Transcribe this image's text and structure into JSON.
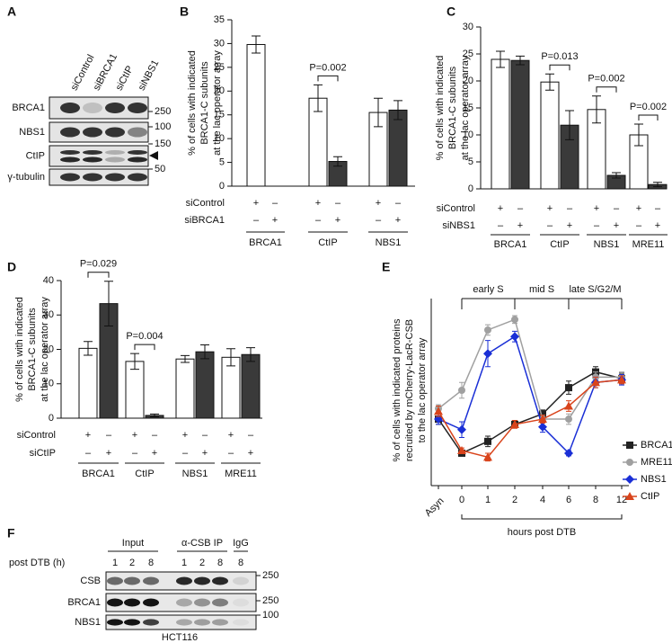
{
  "chart_data": [
    {
      "type": "bar",
      "panel_label": "B",
      "ylabel": [
        "% of cells with indicated",
        "BRCA1-C subunits",
        "at the lac operator array"
      ],
      "categories": [
        "BRCA1",
        "CtIP",
        "NBS1"
      ],
      "series": [
        {
          "color": "#ffffff",
          "values": [
            29.8,
            18.5,
            15.5
          ],
          "errors": [
            1.8,
            2.8,
            3
          ]
        },
        {
          "color": "#3a3a3a",
          "values": [
            null,
            5.2,
            16
          ],
          "errors": [
            null,
            1,
            2
          ]
        }
      ],
      "conditions": [
        {
          "label": "siControl",
          "signs": [
            "+",
            "–",
            "+",
            "–",
            "+",
            "–"
          ]
        },
        {
          "label": "siBRCA1",
          "signs": [
            "–",
            "+",
            "–",
            "+",
            "–",
            "+"
          ]
        }
      ],
      "annotations": [
        {
          "text": "P=0.002",
          "category": "CtIP"
        }
      ],
      "ylim": [
        0,
        35
      ],
      "yticks": [
        0,
        5,
        10,
        15,
        20,
        25,
        30,
        35
      ]
    },
    {
      "type": "bar",
      "panel_label": "C",
      "ylabel": [
        "% of cells with indicated",
        "BRCA1-C subunits",
        "at the lac operator array"
      ],
      "categories": [
        "BRCA1",
        "CtIP",
        "NBS1",
        "MRE11"
      ],
      "series": [
        {
          "color": "#ffffff",
          "values": [
            24,
            19.8,
            14.7,
            10
          ],
          "errors": [
            1.5,
            1.5,
            2.5,
            2
          ]
        },
        {
          "color": "#3a3a3a",
          "values": [
            23.8,
            11.8,
            2.5,
            0.8
          ],
          "errors": [
            0.8,
            2.7,
            0.5,
            0.4
          ]
        }
      ],
      "conditions": [
        {
          "label": "siControl",
          "signs": [
            "+",
            "–",
            "+",
            "–",
            "+",
            "–",
            "+",
            "–"
          ]
        },
        {
          "label": "siNBS1",
          "signs": [
            "–",
            "+",
            "–",
            "+",
            "–",
            "+",
            "–",
            "+"
          ]
        }
      ],
      "annotations": [
        {
          "text": "P=0.013",
          "category": "CtIP"
        },
        {
          "text": "P=0.002",
          "category": "NBS1"
        },
        {
          "text": "P=0.002",
          "category": "MRE11"
        }
      ],
      "ylim": [
        0,
        30
      ],
      "yticks": [
        0,
        5,
        10,
        15,
        20,
        25,
        30
      ]
    },
    {
      "type": "bar",
      "panel_label": "D",
      "ylabel": [
        "% of cells with indicated",
        "BRCA1-C subunits",
        "at the lac operator array"
      ],
      "categories": [
        "BRCA1",
        "CtIP",
        "NBS1",
        "MRE11"
      ],
      "series": [
        {
          "color": "#ffffff",
          "values": [
            20.3,
            16.5,
            17.2,
            17.7
          ],
          "errors": [
            2,
            2.3,
            1,
            2.5
          ]
        },
        {
          "color": "#3a3a3a",
          "values": [
            33.3,
            0.8,
            19.3,
            18.5
          ],
          "errors": [
            6.5,
            0.4,
            2,
            2
          ]
        }
      ],
      "conditions": [
        {
          "label": "siControl",
          "signs": [
            "+",
            "–",
            "+",
            "–",
            "+",
            "–",
            "+",
            "–"
          ]
        },
        {
          "label": "siCtIP",
          "signs": [
            "–",
            "+",
            "–",
            "+",
            "–",
            "+",
            "–",
            "+"
          ]
        }
      ],
      "annotations": [
        {
          "text": "P=0.029",
          "category": "BRCA1"
        },
        {
          "text": "P=0.004",
          "category": "CtIP"
        }
      ],
      "ylim": [
        0,
        40
      ],
      "yticks": [
        0,
        10,
        20,
        30,
        40
      ]
    },
    {
      "type": "line",
      "panel_label": "E",
      "ylabel": [
        "% of cells with indicated proteins",
        "recruited by mCherry-LacR-CSB",
        "to the lac operator array"
      ],
      "xlabel": "hours post DTB",
      "phases": [
        "early S",
        "mid S",
        "late S/G2/M"
      ],
      "categories": [
        "Asyn",
        "0",
        "1",
        "2",
        "4",
        "6",
        "8",
        "12"
      ],
      "series": [
        {
          "name": "BRCA1",
          "color": "#222222",
          "marker": "square",
          "values": [
            24,
            11,
            15.5,
            22,
            26,
            36,
            42,
            39.5
          ],
          "errors": [
            2,
            1,
            2,
            1,
            1.5,
            2.5,
            2,
            2
          ]
        },
        {
          "name": "MRE11",
          "color": "#a0a0a0",
          "marker": "circle",
          "values": [
            28,
            35,
            58,
            62,
            24,
            24,
            40,
            40
          ],
          "errors": [
            1.5,
            3,
            2,
            1.5,
            1.5,
            2,
            2,
            2
          ]
        },
        {
          "name": "NBS1",
          "color": "#1a2fd6",
          "marker": "diamond",
          "values": [
            24,
            20,
            49,
            55.5,
            21,
            11,
            38,
            39
          ],
          "errors": [
            2,
            3,
            5,
            2,
            2,
            1,
            2,
            2
          ]
        },
        {
          "name": "CtIP",
          "color": "#d9441c",
          "marker": "triangle",
          "values": [
            27,
            12,
            9.5,
            22,
            24,
            29,
            38,
            39
          ],
          "errors": [
            2,
            1,
            1.5,
            1.5,
            1.5,
            2,
            2,
            1.5
          ]
        }
      ],
      "ylim": [
        0,
        70
      ],
      "legend": "right"
    }
  ],
  "blots": [
    {
      "panel_label": "A",
      "lanes": [
        "siControl",
        "siBRCA1",
        "siCtIP",
        "siNBS1"
      ],
      "rows": [
        "BRCA1",
        "NBS1",
        "CtIP",
        "γ-tubulin"
      ],
      "markers": [
        250,
        100,
        150,
        50
      ]
    },
    {
      "panel_label": "F",
      "headers": [
        "Input",
        "α-CSB IP",
        "IgG"
      ],
      "timepoint_label": "post DTB (h)",
      "lanes": [
        "1",
        "2",
        "8",
        "1",
        "2",
        "8",
        "8"
      ],
      "rows": [
        "CSB",
        "BRCA1",
        "NBS1"
      ],
      "markers": [
        250,
        250,
        100
      ],
      "cell_line": "HCT116"
    }
  ]
}
